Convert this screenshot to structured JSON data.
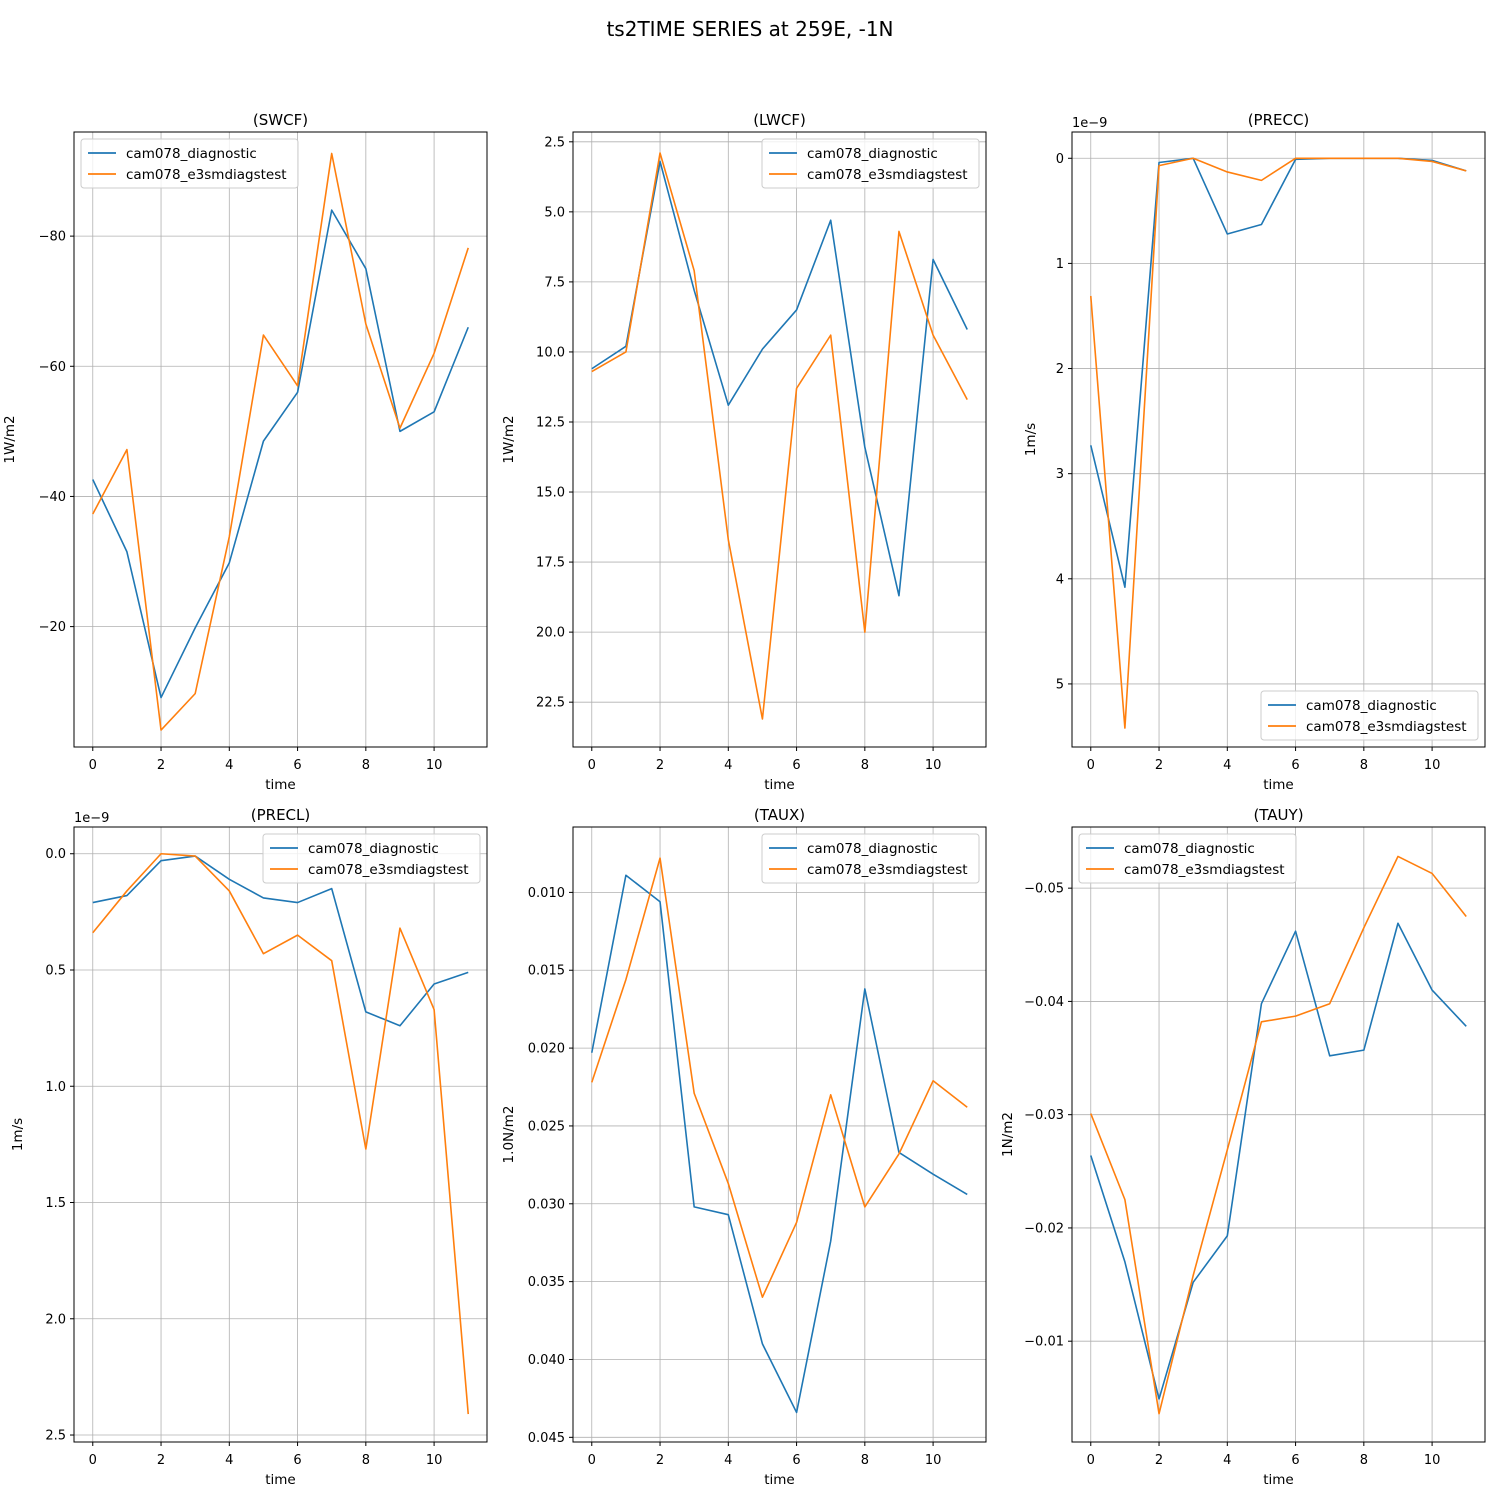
{
  "suptitle": "ts2TIME SERIES at 259E, -1N",
  "colors": {
    "series0": "#1f77b4",
    "series1": "#ff7f0e",
    "grid": "#b0b0b0"
  },
  "chart_data": [
    {
      "type": "line",
      "title": "(SWCF)",
      "xlabel": "time",
      "ylabel": "1W/m2",
      "x": [
        0,
        1,
        2,
        3,
        4,
        5,
        6,
        7,
        8,
        9,
        10,
        11
      ],
      "xticks": [
        0,
        2,
        4,
        6,
        8,
        10
      ],
      "xlim": [
        -0.55,
        11.55
      ],
      "yticks": [
        -80,
        -60,
        -40,
        -20
      ],
      "ytick_labels": [
        "−80",
        "−60",
        "−40",
        "−20"
      ],
      "ylim": [
        -96,
        -1.5
      ],
      "yinverted": true,
      "offset_label": "",
      "grid": true,
      "legend_loc": "upper-left",
      "series": [
        {
          "name": "cam078_diagnostic",
          "values": [
            -42.6,
            -31.5,
            -9.1,
            -19.8,
            -29.8,
            -48.5,
            -56.0,
            -84.0,
            -75.0,
            -50.0,
            -53.0,
            -66.0
          ]
        },
        {
          "name": "cam078_e3smdiagstest",
          "values": [
            -37.3,
            -47.2,
            -4.1,
            -9.7,
            -33.8,
            -64.8,
            -57.0,
            -92.7,
            -66.5,
            -50.5,
            -62.0,
            -78.2
          ]
        }
      ]
    },
    {
      "type": "line",
      "title": "(LWCF)",
      "xlabel": "time",
      "ylabel": "1W/m2",
      "x": [
        0,
        1,
        2,
        3,
        4,
        5,
        6,
        7,
        8,
        9,
        10,
        11
      ],
      "xticks": [
        0,
        2,
        4,
        6,
        8,
        10
      ],
      "xlim": [
        -0.55,
        11.55
      ],
      "yticks": [
        2.5,
        5.0,
        7.5,
        10.0,
        12.5,
        15.0,
        17.5,
        20.0,
        22.5
      ],
      "ytick_labels": [
        "2.5",
        "5.0",
        "7.5",
        "10.0",
        "12.5",
        "15.0",
        "17.5",
        "20.0",
        "22.5"
      ],
      "ylim": [
        2.15,
        24.1
      ],
      "yinverted": true,
      "offset_label": "",
      "grid": true,
      "legend_loc": "upper-right",
      "series": [
        {
          "name": "cam078_diagnostic",
          "values": [
            10.6,
            9.8,
            3.2,
            7.8,
            11.9,
            9.9,
            8.5,
            5.3,
            13.4,
            18.7,
            6.7,
            9.2
          ]
        },
        {
          "name": "cam078_e3smdiagstest",
          "values": [
            10.7,
            10.0,
            2.9,
            7.1,
            16.7,
            23.1,
            11.3,
            9.4,
            20.0,
            5.7,
            9.4,
            11.7
          ]
        }
      ]
    },
    {
      "type": "line",
      "title": "(PRECC)",
      "xlabel": "time",
      "ylabel": "1m/s",
      "x": [
        0,
        1,
        2,
        3,
        4,
        5,
        6,
        7,
        8,
        9,
        10,
        11
      ],
      "xticks": [
        0,
        2,
        4,
        6,
        8,
        10
      ],
      "xlim": [
        -0.55,
        11.55
      ],
      "yticks": [
        0,
        1,
        2,
        3,
        4,
        5
      ],
      "ytick_labels": [
        "0",
        "1",
        "2",
        "3",
        "4",
        "5"
      ],
      "ylim": [
        -0.25,
        5.6
      ],
      "yinverted": true,
      "offset_label": "1e−9",
      "grid": true,
      "legend_loc": "lower-right",
      "series": [
        {
          "name": "cam078_diagnostic",
          "values": [
            2.73,
            4.08,
            0.04,
            0.0,
            0.72,
            0.63,
            0.01,
            0.0,
            0.0,
            0.0,
            0.02,
            0.12
          ]
        },
        {
          "name": "cam078_e3smdiagstest",
          "values": [
            1.31,
            5.42,
            0.07,
            0.0,
            0.13,
            0.21,
            0.0,
            0.0,
            0.0,
            0.0,
            0.03,
            0.12
          ]
        }
      ]
    },
    {
      "type": "line",
      "title": "(PRECL)",
      "xlabel": "time",
      "ylabel": "1m/s",
      "x": [
        0,
        1,
        2,
        3,
        4,
        5,
        6,
        7,
        8,
        9,
        10,
        11
      ],
      "xticks": [
        0,
        2,
        4,
        6,
        8,
        10
      ],
      "xlim": [
        -0.55,
        11.55
      ],
      "yticks": [
        0.0,
        0.5,
        1.0,
        1.5,
        2.0,
        2.5
      ],
      "ytick_labels": [
        "0.0",
        "0.5",
        "1.0",
        "1.5",
        "2.0",
        "2.5"
      ],
      "ylim": [
        -0.115,
        2.53
      ],
      "yinverted": true,
      "offset_label": "1e−9",
      "grid": true,
      "legend_loc": "upper-right",
      "series": [
        {
          "name": "cam078_diagnostic",
          "values": [
            0.21,
            0.18,
            0.03,
            0.01,
            0.11,
            0.19,
            0.21,
            0.15,
            0.68,
            0.74,
            0.56,
            0.51
          ]
        },
        {
          "name": "cam078_e3smdiagstest",
          "values": [
            0.34,
            0.16,
            0.0,
            0.01,
            0.16,
            0.43,
            0.35,
            0.46,
            1.27,
            0.32,
            0.67,
            2.41
          ]
        }
      ]
    },
    {
      "type": "line",
      "title": "(TAUX)",
      "xlabel": "time",
      "ylabel": "1.0N/m2",
      "x": [
        0,
        1,
        2,
        3,
        4,
        5,
        6,
        7,
        8,
        9,
        10,
        11
      ],
      "xticks": [
        0,
        2,
        4,
        6,
        8,
        10
      ],
      "xlim": [
        -0.55,
        11.55
      ],
      "yticks": [
        0.01,
        0.015,
        0.02,
        0.025,
        0.03,
        0.035,
        0.04,
        0.045
      ],
      "ytick_labels": [
        "0.010",
        "0.015",
        "0.020",
        "0.025",
        "0.030",
        "0.035",
        "0.040",
        "0.045"
      ],
      "ylim": [
        0.0058,
        0.0453
      ],
      "yinverted": true,
      "offset_label": "",
      "grid": true,
      "legend_loc": "upper-right",
      "series": [
        {
          "name": "cam078_diagnostic",
          "values": [
            0.0203,
            0.0089,
            0.0106,
            0.0302,
            0.0307,
            0.039,
            0.0434,
            0.0324,
            0.0162,
            0.0267,
            0.0281,
            0.0294
          ]
        },
        {
          "name": "cam078_e3smdiagstest",
          "values": [
            0.0222,
            0.0156,
            0.0078,
            0.0229,
            0.0287,
            0.036,
            0.0312,
            0.023,
            0.0302,
            0.0268,
            0.0221,
            0.0238
          ]
        }
      ]
    },
    {
      "type": "line",
      "title": "(TAUY)",
      "xlabel": "time",
      "ylabel": "1N/m2",
      "x": [
        0,
        1,
        2,
        3,
        4,
        5,
        6,
        7,
        8,
        9,
        10,
        11
      ],
      "xticks": [
        0,
        2,
        4,
        6,
        8,
        10
      ],
      "xlim": [
        -0.55,
        11.55
      ],
      "yticks": [
        -0.05,
        -0.04,
        -0.03,
        -0.02,
        -0.01
      ],
      "ytick_labels": [
        "−0.05",
        "−0.04",
        "−0.03",
        "−0.02",
        "−0.01"
      ],
      "ylim": [
        -0.0554,
        -0.0011
      ],
      "yinverted": true,
      "offset_label": "",
      "grid": true,
      "legend_loc": "upper-left",
      "series": [
        {
          "name": "cam078_diagnostic",
          "values": [
            -0.0264,
            -0.017,
            -0.0049,
            -0.0152,
            -0.0193,
            -0.0398,
            -0.0462,
            -0.0352,
            -0.0357,
            -0.0469,
            -0.041,
            -0.0378
          ]
        },
        {
          "name": "cam078_e3smdiagstest",
          "values": [
            -0.0301,
            -0.0225,
            -0.0036,
            -0.0158,
            -0.0269,
            -0.0382,
            -0.0387,
            -0.0398,
            -0.0465,
            -0.0528,
            -0.0513,
            -0.0475
          ]
        }
      ]
    }
  ]
}
